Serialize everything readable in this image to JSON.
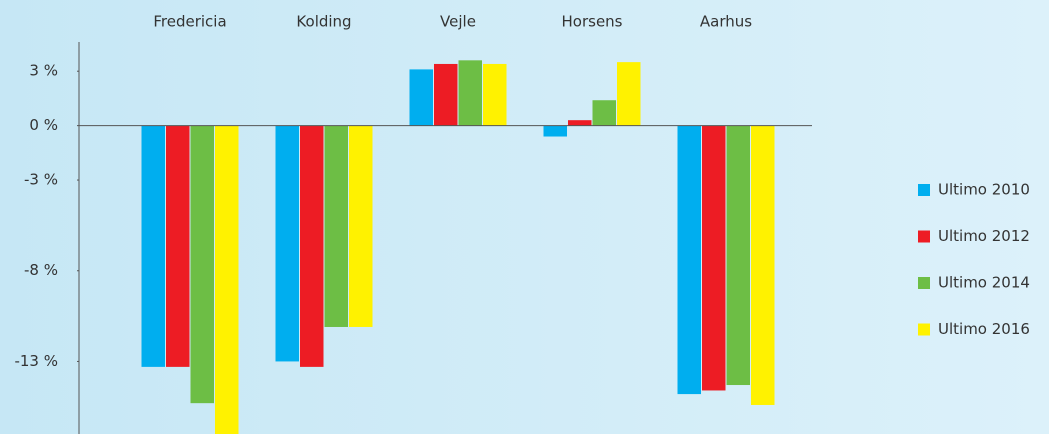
{
  "chart_data": {
    "type": "bar",
    "categories": [
      "Fredericia",
      "Kolding",
      "Vejle",
      "Horsens",
      "Aarhus"
    ],
    "series": [
      {
        "name": "Ultimo 2010",
        "color": "#00aeef",
        "values": [
          -13.3,
          -13.0,
          3.1,
          -0.6,
          -14.8
        ]
      },
      {
        "name": "Ultimo 2012",
        "color": "#ed1c24",
        "values": [
          -13.3,
          -13.3,
          3.4,
          0.3,
          -14.6
        ]
      },
      {
        "name": "Ultimo 2014",
        "color": "#6dbe45",
        "values": [
          -15.3,
          -11.1,
          3.6,
          1.4,
          -14.3
        ]
      },
      {
        "name": "Ultimo 2016",
        "color": "#fff200",
        "values": [
          -17.5,
          -11.1,
          3.4,
          3.5,
          -15.4
        ]
      }
    ],
    "ylim": [
      -17,
      4.5
    ],
    "yticks": [
      {
        "value": 3,
        "label": "3 %"
      },
      {
        "value": 0,
        "label": "0 %"
      },
      {
        "value": -3,
        "label": "-3 %"
      },
      {
        "value": -8,
        "label": "-8 %"
      },
      {
        "value": -13,
        "label": "-13 %"
      }
    ],
    "legend": "right"
  }
}
